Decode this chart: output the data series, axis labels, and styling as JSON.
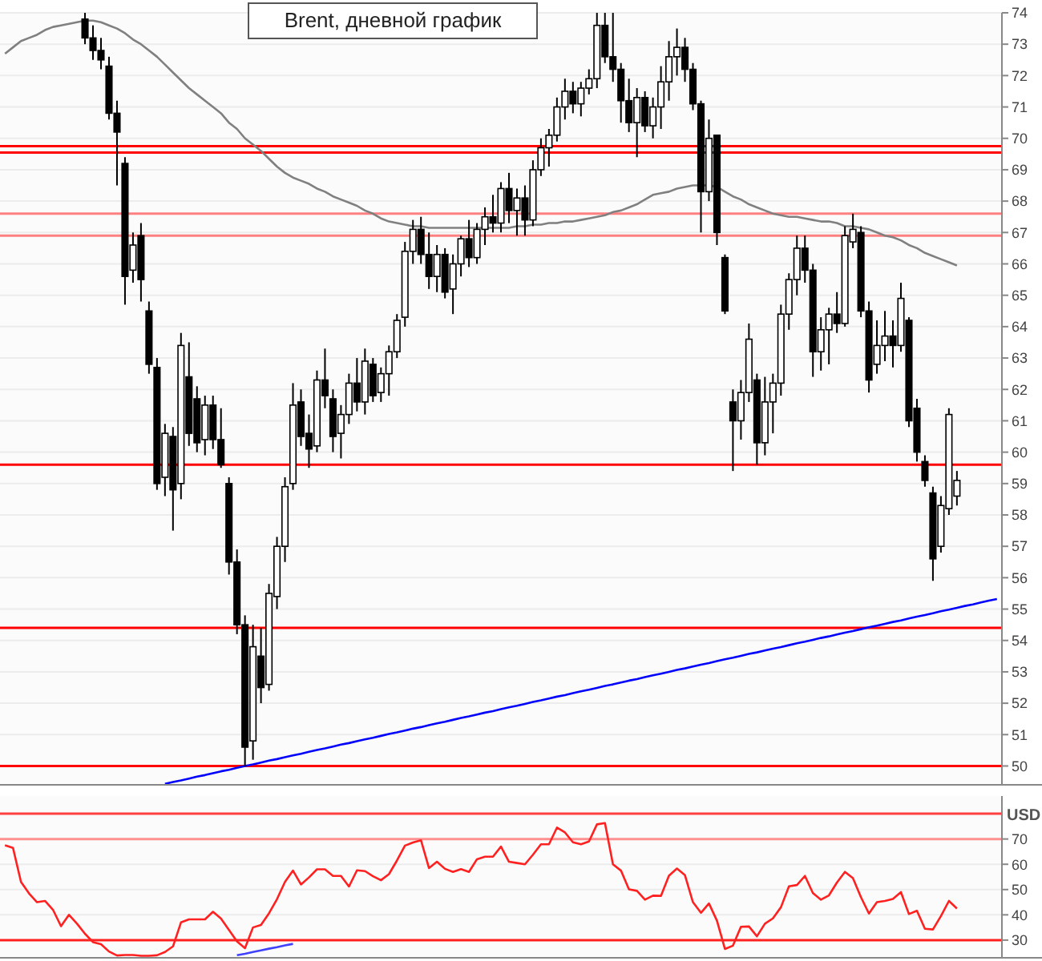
{
  "chart_data": [
    {
      "type": "candlestick",
      "title": "Brent, дневной график",
      "ylabel": "USD",
      "categories": [
        null,
        null,
        null,
        null,
        null,
        null,
        null,
        null,
        null,
        null,
        null,
        null,
        null,
        null,
        null,
        null,
        null,
        null,
        null,
        null,
        null,
        null,
        null,
        null,
        null,
        null,
        null,
        null,
        null,
        null,
        null,
        null,
        null,
        null,
        null,
        null,
        null,
        null,
        null,
        null,
        null,
        null,
        null,
        null,
        null,
        null,
        null,
        null,
        null,
        null,
        null,
        null,
        null,
        null,
        null,
        null,
        null,
        null,
        null,
        null,
        null,
        null,
        null,
        null,
        null,
        null,
        null,
        null,
        null,
        null,
        null,
        null,
        null,
        null,
        null,
        null,
        null,
        null,
        null,
        null,
        null,
        null,
        null,
        null,
        null,
        null,
        null,
        null,
        null,
        null,
        null,
        null,
        null,
        null,
        null,
        null,
        null,
        null,
        null,
        null,
        null,
        null,
        null,
        null,
        null,
        null,
        null,
        null,
        null,
        null,
        null,
        null,
        null,
        null,
        null,
        null,
        null,
        null,
        null,
        null,
        null,
        null,
        null,
        null,
        null
      ],
      "color": "#000000",
      "ohlc": [
        null,
        null,
        null,
        null,
        null,
        null,
        null,
        null,
        null,
        null,
        [
          73.8,
          74,
          73,
          73.2
        ],
        [
          73.2,
          73.6,
          72.5,
          72.8
        ],
        [
          72.8,
          73.2,
          72.2,
          72.5
        ],
        [
          72.3,
          72.6,
          70.6,
          70.8
        ],
        [
          70.8,
          71.2,
          68.5,
          70.2
        ],
        [
          69.2,
          69.4,
          64.7,
          65.6
        ],
        [
          65.8,
          67,
          65.4,
          66.6
        ],
        [
          66.9,
          67.3,
          64.8,
          65.5
        ],
        [
          64.5,
          64.8,
          62.5,
          62.8
        ],
        [
          62.7,
          63,
          58.8,
          59
        ],
        [
          59.2,
          60.9,
          58.6,
          60.6
        ],
        [
          60.5,
          60.8,
          57.5,
          58.8
        ],
        [
          59,
          63.8,
          58.5,
          63.4
        ],
        [
          62.4,
          63.5,
          60.2,
          60.6
        ],
        [
          61.7,
          62.1,
          60,
          60.3
        ],
        [
          60.4,
          61.8,
          59.9,
          61.5
        ],
        [
          61.5,
          61.8,
          60.1,
          60.4
        ],
        [
          60.4,
          61.4,
          59.5,
          59.6
        ],
        [
          59,
          59.2,
          56.1,
          56.5
        ],
        [
          56.5,
          56.9,
          54.2,
          54.5
        ],
        [
          54.5,
          54.8,
          50,
          50.6
        ],
        [
          50.8,
          54.5,
          50.2,
          53.8
        ],
        [
          53.5,
          54.4,
          52,
          52.5
        ],
        [
          52.6,
          55.8,
          52.4,
          55.5
        ],
        [
          55.4,
          57.3,
          55,
          57
        ],
        [
          57,
          59.2,
          56.5,
          58.9
        ],
        [
          59,
          62.2,
          58.8,
          61.5
        ],
        [
          61.6,
          62,
          60.2,
          60.5
        ],
        [
          60.6,
          61.2,
          59.5,
          60.1
        ],
        [
          60.2,
          62.6,
          60,
          62.3
        ],
        [
          62.3,
          63.3,
          61.4,
          61.8
        ],
        [
          61.7,
          62,
          60,
          60.5
        ],
        [
          60.6,
          61.5,
          59.8,
          61.2
        ],
        [
          61.2,
          62.5,
          60.9,
          62.2
        ],
        [
          62.2,
          63,
          61.3,
          61.6
        ],
        [
          61.6,
          63.3,
          61.2,
          62.9
        ],
        [
          62.8,
          63,
          61.6,
          61.8
        ],
        [
          61.9,
          62.7,
          61.6,
          62.5
        ],
        [
          62.5,
          63.4,
          61.8,
          63.2
        ],
        [
          63.2,
          64.4,
          63,
          64.2
        ],
        [
          64.3,
          66.7,
          64,
          66.4
        ],
        [
          66.4,
          67.4,
          66,
          67.1
        ],
        [
          67.1,
          67.5,
          66,
          66.3
        ],
        [
          66.3,
          67,
          65.2,
          65.6
        ],
        [
          65.6,
          66.6,
          65.1,
          66.3
        ],
        [
          66.3,
          66.5,
          64.9,
          65.1
        ],
        [
          65.2,
          66.3,
          64.4,
          66
        ],
        [
          66,
          66.9,
          65.6,
          66.8
        ],
        [
          66.8,
          67.4,
          65.9,
          66.2
        ],
        [
          66.2,
          67.3,
          66,
          67.1
        ],
        [
          67.1,
          67.8,
          66.6,
          67.5
        ],
        [
          67.5,
          68.2,
          67,
          67.3
        ],
        [
          67.3,
          68.6,
          67,
          68.4
        ],
        [
          68.4,
          68.9,
          67.3,
          67.7
        ],
        [
          67.7,
          68.4,
          66.9,
          68.1
        ],
        [
          68.1,
          68.5,
          66.9,
          67.4
        ],
        [
          67.4,
          69.3,
          67.2,
          69
        ],
        [
          69,
          70,
          68.8,
          69.7
        ],
        [
          69.7,
          70.3,
          69.1,
          70.1
        ],
        [
          70.1,
          71.3,
          69.9,
          71
        ],
        [
          71,
          71.9,
          70.6,
          71.5
        ],
        [
          71.5,
          71.8,
          70.8,
          71.1
        ],
        [
          71.1,
          71.8,
          70.7,
          71.6
        ],
        [
          71.6,
          72.2,
          71.4,
          71.9
        ],
        [
          71.9,
          74,
          71.6,
          73.6
        ],
        [
          73.6,
          74,
          72.4,
          72.6
        ],
        [
          72.6,
          74,
          71.8,
          72.2
        ],
        [
          72.2,
          72.4,
          70.5,
          71.2
        ],
        [
          71.2,
          71.9,
          70.2,
          70.5
        ],
        [
          70.5,
          71.6,
          69.4,
          71.3
        ],
        [
          71.3,
          71.5,
          70.2,
          70.4
        ],
        [
          70.4,
          71.3,
          70,
          71
        ],
        [
          71,
          72.3,
          70.3,
          71.8
        ],
        [
          71.8,
          73.1,
          71.2,
          72.6
        ],
        [
          72.6,
          73.5,
          72,
          72.9
        ],
        [
          72.9,
          73.2,
          71.8,
          72.2
        ],
        [
          72.2,
          72.4,
          70.9,
          71.1
        ],
        [
          71.1,
          71.2,
          67,
          68.3
        ],
        [
          68.3,
          70.6,
          68,
          70
        ],
        [
          70.1,
          70.1,
          66.6,
          67
        ],
        [
          66.2,
          66.3,
          64.4,
          64.5
        ],
        [
          61.6,
          62,
          59.4,
          61
        ],
        [
          61,
          62.3,
          60.4,
          61.9
        ],
        [
          61.9,
          64.1,
          61.6,
          63.6
        ],
        [
          62.3,
          62.5,
          59.6,
          60.3
        ],
        [
          60.3,
          62.4,
          59.9,
          61.6
        ],
        [
          61.6,
          62.5,
          60.6,
          62.2
        ],
        [
          62.2,
          64.7,
          61.8,
          64.4
        ],
        [
          64.4,
          65.7,
          63.9,
          65.5
        ],
        [
          65.5,
          66.9,
          65,
          66.5
        ],
        [
          66.5,
          66.9,
          65.4,
          65.8
        ],
        [
          65.8,
          66,
          62.4,
          63.2
        ],
        [
          63.2,
          64.3,
          62.6,
          63.9
        ],
        [
          63.9,
          64.6,
          62.8,
          64.4
        ],
        [
          64.4,
          65.1,
          63.8,
          64.1
        ],
        [
          64.1,
          67.2,
          64,
          66.9
        ],
        [
          66.7,
          67.6,
          66.5,
          67.1
        ],
        [
          67,
          67.2,
          64.3,
          64.5
        ],
        [
          64.5,
          64.8,
          61.9,
          62.3
        ],
        [
          62.8,
          64.2,
          62.5,
          63.4
        ],
        [
          63.4,
          64.5,
          62.9,
          63.7
        ],
        [
          63.7,
          64.2,
          62.7,
          63.4
        ],
        [
          63.4,
          65.4,
          63.2,
          64.9
        ],
        [
          64.2,
          64.3,
          60.8,
          61
        ],
        [
          61.4,
          61.7,
          59.7,
          60
        ],
        [
          59.7,
          59.9,
          58.9,
          59.1
        ],
        [
          58.7,
          58.9,
          55.9,
          56.6
        ],
        [
          57,
          58.6,
          56.8,
          58.3
        ],
        [
          58.2,
          61.4,
          58,
          61.2
        ],
        [
          58.6,
          59.4,
          58.3,
          59.1
        ],
        null,
        null,
        null,
        null,
        null
      ],
      "series": [
        {
          "type": "line",
          "color": "#808080",
          "values": [
            72.7,
            72.9,
            73.1,
            73.2,
            73.3,
            73.45,
            73.55,
            73.6,
            73.65,
            73.7,
            73.75,
            73.75,
            73.7,
            73.6,
            73.5,
            73.35,
            73.15,
            73.0,
            72.8,
            72.6,
            72.35,
            72.1,
            71.85,
            71.6,
            71.4,
            71.2,
            71.0,
            70.8,
            70.5,
            70.3,
            70.0,
            69.8,
            69.6,
            69.35,
            69.1,
            68.9,
            68.75,
            68.65,
            68.55,
            68.4,
            68.3,
            68.15,
            68.05,
            67.95,
            67.85,
            67.7,
            67.6,
            67.45,
            67.35,
            67.3,
            67.25,
            67.2,
            67.2,
            67.15,
            67.15,
            67.15,
            67.15,
            67.15,
            67.15,
            67.15,
            67.15,
            67.15,
            67.15,
            67.15,
            67.2,
            67.2,
            67.25,
            67.25,
            67.3,
            67.3,
            67.35,
            67.35,
            67.4,
            67.45,
            67.5,
            67.55,
            67.65,
            67.7,
            67.8,
            67.9,
            68.05,
            68.2,
            68.25,
            68.3,
            68.4,
            68.45,
            68.5,
            68.5,
            68.5,
            68.45,
            68.3,
            68.15,
            68.05,
            67.9,
            67.8,
            67.7,
            67.6,
            67.55,
            67.5,
            67.5,
            67.45,
            67.4,
            67.35,
            67.35,
            67.3,
            67.2,
            67.2,
            67.15,
            67.1,
            67.0,
            66.9,
            66.85,
            66.75,
            66.6,
            66.5,
            66.35,
            66.25,
            66.15,
            66.05,
            65.95,
            null,
            null,
            null,
            null,
            null
          ]
        },
        {
          "type": "line",
          "color": "#0000ff",
          "values": [
            null,
            null,
            null,
            null,
            null,
            null,
            null,
            null,
            null,
            null,
            null,
            null,
            null,
            null,
            null,
            null,
            null,
            null,
            null,
            null,
            49.43,
            49.49,
            49.54,
            49.6,
            49.66,
            49.71,
            49.77,
            49.83,
            49.88,
            49.94,
            50.0,
            50.05,
            50.11,
            50.17,
            50.22,
            50.28,
            50.34,
            50.39,
            50.45,
            50.51,
            50.56,
            50.62,
            50.68,
            50.73,
            50.79,
            50.85,
            50.9,
            50.96,
            51.02,
            51.07,
            51.13,
            51.19,
            51.24,
            51.3,
            51.36,
            51.41,
            51.47,
            51.53,
            51.58,
            51.64,
            51.7,
            51.75,
            51.81,
            51.87,
            51.92,
            51.98,
            52.04,
            52.09,
            52.15,
            52.21,
            52.26,
            52.32,
            52.38,
            52.43,
            52.49,
            52.55,
            52.6,
            52.66,
            52.72,
            52.77,
            52.83,
            52.89,
            52.94,
            53.0,
            53.06,
            53.11,
            53.17,
            53.23,
            53.28,
            53.34,
            53.4,
            53.45,
            53.51,
            53.57,
            53.62,
            53.68,
            53.74,
            53.79,
            53.85,
            53.91,
            53.96,
            54.02,
            54.08,
            54.13,
            54.19,
            54.25,
            54.3,
            54.36,
            54.42,
            54.47,
            54.53,
            54.59,
            54.64,
            54.7,
            54.76,
            54.81,
            54.87,
            54.93,
            54.98,
            55.04,
            55.1,
            55.15,
            55.21,
            55.27,
            55.32
          ]
        }
      ],
      "ref_lines": [
        {
          "axis": "y",
          "value": 69.75,
          "color": "#ff0000"
        },
        {
          "axis": "y",
          "value": 69.55,
          "color": "#ff0000"
        },
        {
          "axis": "y",
          "value": 67.6,
          "color": "#ff8080"
        },
        {
          "axis": "y",
          "value": 66.9,
          "color": "#ff8080"
        },
        {
          "axis": "y",
          "value": 59.6,
          "color": "#ff0000"
        },
        {
          "axis": "y",
          "value": 54.4,
          "color": "#ff0000"
        },
        {
          "axis": "y",
          "value": 50,
          "color": "#ff0000"
        }
      ],
      "ylim": [
        49.4,
        74
      ],
      "yticks": [
        50,
        51,
        52,
        53,
        54,
        55,
        56,
        57,
        58,
        59,
        60,
        61,
        62,
        63,
        64,
        65,
        66,
        67,
        68,
        69,
        70,
        71,
        72,
        73,
        74
      ],
      "grid": "y",
      "tick_labels": "y"
    },
    {
      "type": "line",
      "categories": [
        null,
        null,
        null,
        null,
        null,
        null,
        null,
        null,
        null,
        null,
        null,
        null,
        null,
        null,
        null,
        null,
        null,
        null,
        null,
        null,
        null,
        null,
        null,
        null,
        null,
        null,
        null,
        null,
        null,
        null,
        null,
        null,
        null,
        null,
        null,
        null,
        null,
        null,
        null,
        null,
        null,
        null,
        null,
        null,
        null,
        null,
        null,
        null,
        null,
        null,
        null,
        null,
        null,
        null,
        null,
        null,
        null,
        null,
        null,
        null,
        null,
        null,
        null,
        null,
        null,
        null,
        null,
        null,
        null,
        null,
        null,
        null,
        null,
        null,
        null,
        null,
        null,
        null,
        null,
        null,
        null,
        null,
        null,
        null,
        null,
        null,
        null,
        null,
        null,
        null,
        null,
        null,
        null,
        null,
        null,
        null,
        null,
        null,
        null,
        null,
        null,
        null,
        null,
        null,
        null,
        null,
        null,
        null,
        null,
        null,
        null,
        null,
        null,
        null,
        null,
        null,
        null,
        null,
        null,
        null,
        null,
        null,
        null,
        null,
        null
      ],
      "series": [
        {
          "color": "#ff2020",
          "values": [
            67.5,
            66.5,
            53,
            48.5,
            45,
            45.5,
            42,
            35.5,
            40,
            36.5,
            32.5,
            29.2,
            28.4,
            25.5,
            23.9,
            24.1,
            24.1,
            23.8,
            23.8,
            24,
            25.3,
            27.5,
            37,
            38.2,
            38.2,
            38.2,
            41.2,
            38.5,
            34,
            29.5,
            26.8,
            35,
            36,
            40.6,
            46.2,
            53,
            57.5,
            52,
            54.8,
            58,
            58,
            55.4,
            55.4,
            51.2,
            57.6,
            57.3,
            55.3,
            53.7,
            56.1,
            61.5,
            67.4,
            68.6,
            69.5,
            58.5,
            61,
            58.2,
            57,
            58.1,
            57,
            62,
            63,
            63,
            67,
            61,
            60.5,
            60,
            63.8,
            67.9,
            67.9,
            74.5,
            72.6,
            68.7,
            67.9,
            69,
            75.8,
            76.3,
            60,
            57.5,
            50.1,
            49.5,
            46,
            47.6,
            47.5,
            55.5,
            58.3,
            55.7,
            45,
            40.8,
            44.5,
            37.7,
            26.5,
            27.8,
            35.3,
            35.4,
            31.5,
            36.5,
            38.6,
            43,
            51.3,
            51.8,
            55.4,
            48.6,
            46,
            47.7,
            52.8,
            57,
            54.5,
            47,
            40.5,
            45,
            45.5,
            46.3,
            49,
            40.3,
            41.6,
            34.5,
            34.2,
            39.5,
            45.5,
            42.5,
            null,
            null,
            null,
            null,
            null
          ]
        },
        {
          "color": "#4040ff",
          "values": [
            null,
            null,
            null,
            null,
            null,
            null,
            null,
            null,
            null,
            null,
            null,
            null,
            null,
            null,
            null,
            null,
            null,
            null,
            null,
            null,
            null,
            null,
            null,
            null,
            null,
            null,
            null,
            null,
            null,
            24,
            24.6,
            25.3,
            25.9,
            26.6,
            27.2,
            27.9,
            28.5,
            null,
            null,
            null,
            null,
            null,
            null,
            null,
            null,
            null,
            null,
            null,
            null,
            null,
            null,
            null,
            null,
            null,
            null,
            null,
            null,
            null,
            null,
            null,
            null,
            null,
            null,
            null,
            null,
            null,
            null,
            null,
            null,
            null,
            null,
            null,
            null,
            null,
            null,
            null,
            null,
            null,
            null,
            null,
            null,
            null,
            null,
            null,
            null,
            null,
            null,
            null,
            null,
            null,
            null,
            null,
            null,
            null,
            null,
            null,
            null,
            null,
            null,
            null,
            null,
            null,
            null,
            null,
            null,
            null,
            null,
            null,
            null,
            null,
            null,
            null,
            null,
            null,
            null,
            null,
            null,
            null,
            null,
            null,
            null,
            null,
            null,
            null,
            null
          ]
        }
      ],
      "ref_lines": [
        {
          "axis": "y",
          "value": 80,
          "color": "#ff4040"
        },
        {
          "axis": "y",
          "value": 70,
          "color": "#ff9090"
        },
        {
          "axis": "y",
          "value": 30,
          "color": "#ff2020"
        }
      ],
      "ylim": [
        23,
        87
      ],
      "yticks": [
        30,
        40,
        50,
        60,
        70
      ],
      "grid": "y",
      "tick_labels": "y"
    }
  ]
}
